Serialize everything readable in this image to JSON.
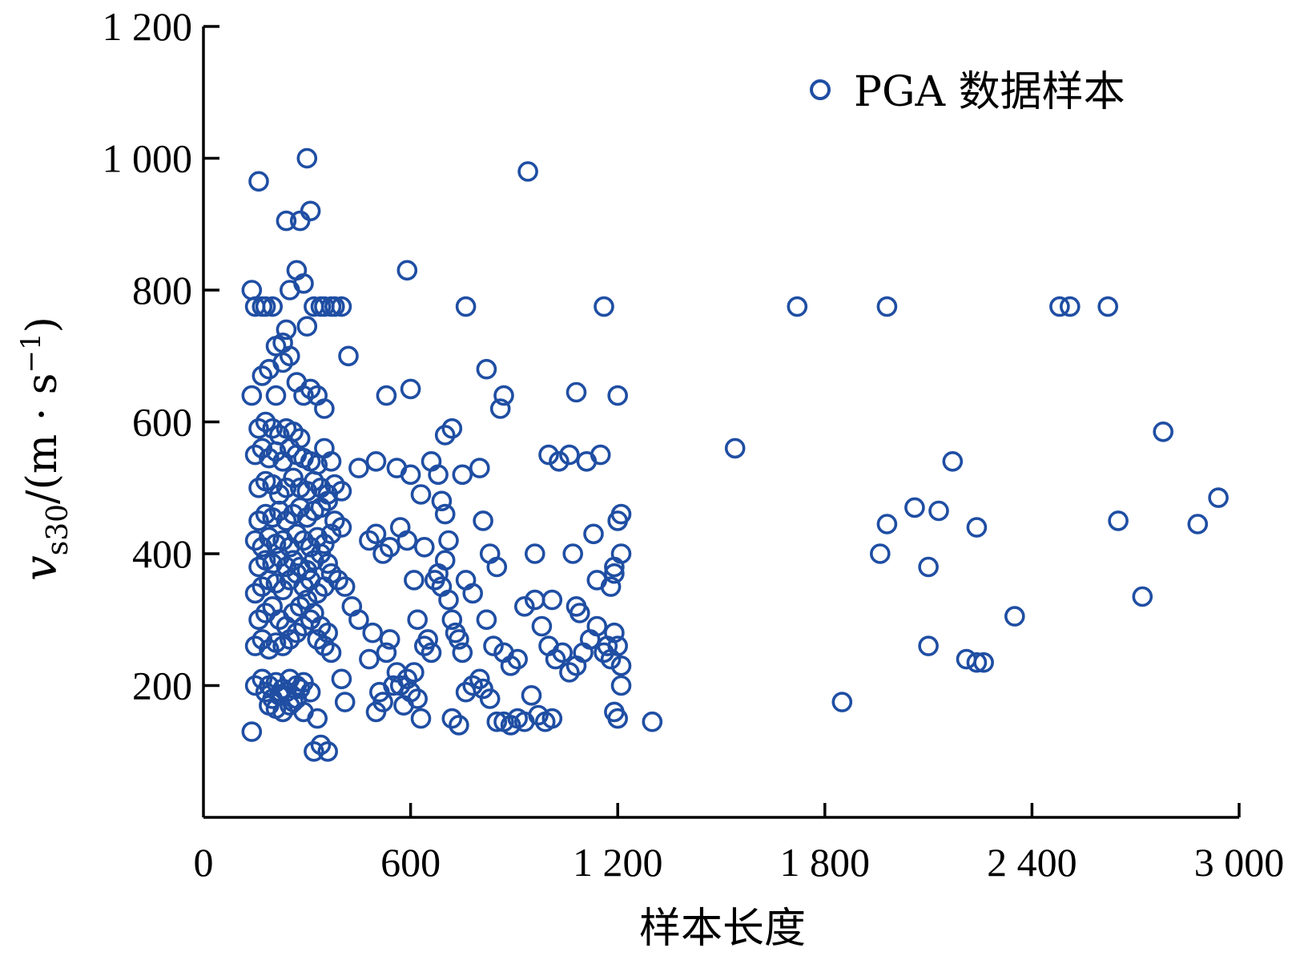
{
  "chart_data": {
    "type": "scatter",
    "xlabel": "样本长度",
    "ylabel_main": "v",
    "ylabel_sub": "s30",
    "ylabel_unit": "/(m · s",
    "ylabel_sup": "−1",
    "ylabel_close": ")",
    "xlim": [
      0,
      3000
    ],
    "ylim": [
      0,
      1200
    ],
    "x_ticks": [
      0,
      600,
      1200,
      1800,
      2400,
      3000
    ],
    "x_tick_labels": [
      "0",
      "600",
      "1 200",
      "1 800",
      "2 400",
      "3 000"
    ],
    "y_ticks": [
      200,
      400,
      600,
      800,
      1000,
      1200
    ],
    "y_tick_labels": [
      "200",
      "400",
      "600",
      "800",
      "1 000",
      "1 200"
    ],
    "grid": false,
    "legend_position": "top-right",
    "marker_color": "#1f4ea3",
    "series": [
      {
        "name": "PGA 数据样本",
        "points": [
          [
            140,
            130
          ],
          [
            190,
            170
          ],
          [
            210,
            165
          ],
          [
            230,
            160
          ],
          [
            250,
            170
          ],
          [
            270,
            180
          ],
          [
            290,
            160
          ],
          [
            330,
            150
          ],
          [
            150,
            200
          ],
          [
            170,
            210
          ],
          [
            190,
            200
          ],
          [
            210,
            205
          ],
          [
            230,
            195
          ],
          [
            250,
            210
          ],
          [
            270,
            200
          ],
          [
            290,
            205
          ],
          [
            310,
            190
          ],
          [
            180,
            190
          ],
          [
            200,
            180
          ],
          [
            220,
            185
          ],
          [
            240,
            190
          ],
          [
            260,
            175
          ],
          [
            280,
            195
          ],
          [
            150,
            260
          ],
          [
            170,
            270
          ],
          [
            190,
            255
          ],
          [
            210,
            265
          ],
          [
            230,
            260
          ],
          [
            250,
            270
          ],
          [
            270,
            280
          ],
          [
            290,
            290
          ],
          [
            310,
            300
          ],
          [
            330,
            270
          ],
          [
            350,
            260
          ],
          [
            370,
            250
          ],
          [
            160,
            300
          ],
          [
            180,
            310
          ],
          [
            200,
            320
          ],
          [
            220,
            300
          ],
          [
            240,
            290
          ],
          [
            260,
            310
          ],
          [
            280,
            320
          ],
          [
            300,
            330
          ],
          [
            320,
            310
          ],
          [
            340,
            290
          ],
          [
            360,
            280
          ],
          [
            150,
            340
          ],
          [
            170,
            350
          ],
          [
            190,
            360
          ],
          [
            210,
            355
          ],
          [
            230,
            345
          ],
          [
            250,
            360
          ],
          [
            270,
            370
          ],
          [
            290,
            350
          ],
          [
            310,
            360
          ],
          [
            330,
            340
          ],
          [
            350,
            350
          ],
          [
            370,
            370
          ],
          [
            390,
            360
          ],
          [
            410,
            350
          ],
          [
            160,
            380
          ],
          [
            180,
            390
          ],
          [
            200,
            385
          ],
          [
            220,
            395
          ],
          [
            240,
            380
          ],
          [
            260,
            390
          ],
          [
            280,
            380
          ],
          [
            300,
            375
          ],
          [
            320,
            390
          ],
          [
            340,
            400
          ],
          [
            360,
            385
          ],
          [
            150,
            420
          ],
          [
            170,
            410
          ],
          [
            190,
            425
          ],
          [
            210,
            415
          ],
          [
            230,
            420
          ],
          [
            250,
            410
          ],
          [
            270,
            430
          ],
          [
            290,
            420
          ],
          [
            310,
            410
          ],
          [
            330,
            425
          ],
          [
            350,
            415
          ],
          [
            370,
            430
          ],
          [
            160,
            450
          ],
          [
            180,
            460
          ],
          [
            200,
            455
          ],
          [
            220,
            465
          ],
          [
            240,
            450
          ],
          [
            260,
            460
          ],
          [
            280,
            470
          ],
          [
            300,
            455
          ],
          [
            320,
            465
          ],
          [
            340,
            470
          ],
          [
            360,
            480
          ],
          [
            380,
            450
          ],
          [
            400,
            440
          ],
          [
            160,
            500
          ],
          [
            180,
            510
          ],
          [
            200,
            505
          ],
          [
            220,
            490
          ],
          [
            240,
            500
          ],
          [
            260,
            515
          ],
          [
            280,
            500
          ],
          [
            300,
            495
          ],
          [
            320,
            510
          ],
          [
            340,
            500
          ],
          [
            360,
            490
          ],
          [
            380,
            505
          ],
          [
            400,
            495
          ],
          [
            150,
            550
          ],
          [
            170,
            560
          ],
          [
            190,
            545
          ],
          [
            210,
            555
          ],
          [
            230,
            540
          ],
          [
            250,
            560
          ],
          [
            270,
            550
          ],
          [
            290,
            545
          ],
          [
            310,
            540
          ],
          [
            330,
            535
          ],
          [
            350,
            560
          ],
          [
            370,
            540
          ],
          [
            160,
            590
          ],
          [
            180,
            600
          ],
          [
            200,
            590
          ],
          [
            220,
            580
          ],
          [
            240,
            590
          ],
          [
            260,
            585
          ],
          [
            280,
            575
          ],
          [
            140,
            640
          ],
          [
            170,
            670
          ],
          [
            190,
            680
          ],
          [
            210,
            640
          ],
          [
            230,
            690
          ],
          [
            250,
            700
          ],
          [
            270,
            660
          ],
          [
            290,
            640
          ],
          [
            310,
            650
          ],
          [
            330,
            640
          ],
          [
            350,
            620
          ],
          [
            140,
            800
          ],
          [
            150,
            775
          ],
          [
            170,
            775
          ],
          [
            180,
            775
          ],
          [
            200,
            775
          ],
          [
            210,
            715
          ],
          [
            230,
            720
          ],
          [
            240,
            740
          ],
          [
            250,
            800
          ],
          [
            270,
            830
          ],
          [
            290,
            810
          ],
          [
            300,
            745
          ],
          [
            320,
            775
          ],
          [
            340,
            775
          ],
          [
            350,
            775
          ],
          [
            370,
            775
          ],
          [
            380,
            775
          ],
          [
            400,
            775
          ],
          [
            420,
            700
          ],
          [
            160,
            965
          ],
          [
            240,
            905
          ],
          [
            280,
            905
          ],
          [
            300,
            1000
          ],
          [
            310,
            920
          ],
          [
            320,
            100
          ],
          [
            340,
            110
          ],
          [
            360,
            100
          ],
          [
            400,
            210
          ],
          [
            410,
            175
          ],
          [
            430,
            320
          ],
          [
            450,
            300
          ],
          [
            480,
            240
          ],
          [
            490,
            280
          ],
          [
            500,
            160
          ],
          [
            510,
            190
          ],
          [
            520,
            175
          ],
          [
            530,
            250
          ],
          [
            540,
            270
          ],
          [
            550,
            200
          ],
          [
            560,
            220
          ],
          [
            570,
            200
          ],
          [
            580,
            170
          ],
          [
            590,
            210
          ],
          [
            600,
            190
          ],
          [
            610,
            220
          ],
          [
            620,
            180
          ],
          [
            630,
            150
          ],
          [
            480,
            420
          ],
          [
            500,
            430
          ],
          [
            520,
            400
          ],
          [
            540,
            410
          ],
          [
            560,
            530
          ],
          [
            570,
            440
          ],
          [
            590,
            420
          ],
          [
            610,
            360
          ],
          [
            620,
            300
          ],
          [
            640,
            260
          ],
          [
            650,
            270
          ],
          [
            660,
            250
          ],
          [
            670,
            360
          ],
          [
            680,
            370
          ],
          [
            690,
            350
          ],
          [
            700,
            390
          ],
          [
            710,
            330
          ],
          [
            720,
            300
          ],
          [
            730,
            280
          ],
          [
            740,
            270
          ],
          [
            750,
            250
          ],
          [
            450,
            530
          ],
          [
            500,
            540
          ],
          [
            530,
            640
          ],
          [
            600,
            650
          ],
          [
            600,
            520
          ],
          [
            630,
            490
          ],
          [
            640,
            410
          ],
          [
            660,
            540
          ],
          [
            680,
            520
          ],
          [
            690,
            480
          ],
          [
            700,
            460
          ],
          [
            710,
            420
          ],
          [
            720,
            590
          ],
          [
            750,
            520
          ],
          [
            760,
            360
          ],
          [
            780,
            340
          ],
          [
            800,
            530
          ],
          [
            810,
            450
          ],
          [
            830,
            400
          ],
          [
            850,
            380
          ],
          [
            860,
            620
          ],
          [
            870,
            640
          ],
          [
            820,
            680
          ],
          [
            760,
            775
          ],
          [
            700,
            580
          ],
          [
            590,
            830
          ],
          [
            720,
            150
          ],
          [
            740,
            140
          ],
          [
            760,
            190
          ],
          [
            780,
            200
          ],
          [
            800,
            210
          ],
          [
            810,
            195
          ],
          [
            830,
            180
          ],
          [
            850,
            145
          ],
          [
            870,
            145
          ],
          [
            890,
            140
          ],
          [
            910,
            150
          ],
          [
            930,
            145
          ],
          [
            950,
            185
          ],
          [
            970,
            155
          ],
          [
            990,
            145
          ],
          [
            1010,
            150
          ],
          [
            820,
            300
          ],
          [
            840,
            260
          ],
          [
            870,
            250
          ],
          [
            890,
            230
          ],
          [
            910,
            240
          ],
          [
            930,
            320
          ],
          [
            960,
            330
          ],
          [
            980,
            290
          ],
          [
            1000,
            260
          ],
          [
            1020,
            240
          ],
          [
            1040,
            250
          ],
          [
            1060,
            220
          ],
          [
            1080,
            230
          ],
          [
            1100,
            250
          ],
          [
            1120,
            270
          ],
          [
            1140,
            290
          ],
          [
            1160,
            250
          ],
          [
            1180,
            240
          ],
          [
            1190,
            280
          ],
          [
            1200,
            260
          ],
          [
            1210,
            230
          ],
          [
            960,
            400
          ],
          [
            1000,
            550
          ],
          [
            1030,
            540
          ],
          [
            1060,
            550
          ],
          [
            1070,
            400
          ],
          [
            1080,
            320
          ],
          [
            1090,
            310
          ],
          [
            1110,
            540
          ],
          [
            1130,
            430
          ],
          [
            1140,
            360
          ],
          [
            1150,
            550
          ],
          [
            1170,
            260
          ],
          [
            1180,
            350
          ],
          [
            1190,
            380
          ],
          [
            1200,
            450
          ],
          [
            1210,
            460
          ],
          [
            1210,
            400
          ],
          [
            1200,
            640
          ],
          [
            1080,
            645
          ],
          [
            1010,
            330
          ],
          [
            940,
            980
          ],
          [
            1160,
            775
          ],
          [
            1190,
            160
          ],
          [
            1200,
            150
          ],
          [
            1210,
            200
          ],
          [
            1190,
            370
          ],
          [
            1300,
            145
          ],
          [
            1540,
            560
          ],
          [
            1720,
            775
          ],
          [
            1980,
            775
          ],
          [
            2480,
            775
          ],
          [
            2510,
            775
          ],
          [
            2620,
            775
          ],
          [
            2780,
            585
          ],
          [
            2940,
            485
          ],
          [
            2880,
            445
          ],
          [
            2720,
            335
          ],
          [
            2650,
            450
          ],
          [
            1850,
            175
          ],
          [
            1960,
            400
          ],
          [
            1980,
            445
          ],
          [
            2060,
            470
          ],
          [
            2100,
            380
          ],
          [
            2100,
            260
          ],
          [
            2130,
            465
          ],
          [
            2170,
            540
          ],
          [
            2210,
            240
          ],
          [
            2240,
            440
          ],
          [
            2240,
            235
          ],
          [
            2260,
            235
          ],
          [
            2350,
            305
          ]
        ]
      }
    ]
  }
}
